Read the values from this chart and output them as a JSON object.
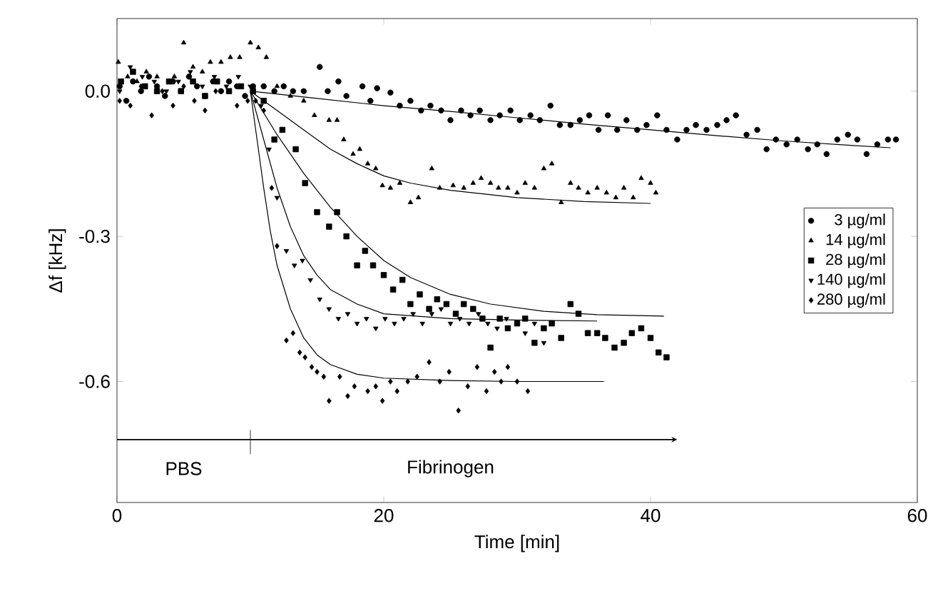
{
  "chart_data": {
    "type": "scatter",
    "xlabel": "Time [min]",
    "ylabel": "Δf [kHz]",
    "xlim": [
      0,
      60
    ],
    "ylim": [
      -0.85,
      0.15
    ],
    "xticks": [
      0,
      20,
      40,
      60
    ],
    "yticks": [
      {
        "value": 0,
        "label": "0.0"
      },
      -0.3,
      -0.6
    ],
    "legend": "right",
    "annotations": [
      "PBS",
      "Fibrinogen"
    ],
    "series": [
      {
        "name": "3 µg/ml",
        "color": "#000000",
        "marker": "circle",
        "x": [
          0.2,
          0.7,
          1.2,
          1.8,
          2.4,
          3,
          3.6,
          4.2,
          4.8,
          5.4,
          6,
          6.6,
          7.2,
          7.8,
          8.4,
          9,
          9.6,
          10.2,
          11,
          11.8,
          12.5,
          13.2,
          14,
          15.2,
          15.8,
          16.6,
          17.2,
          18.4,
          19,
          19.5,
          20.5,
          21.2,
          22,
          22.8,
          23.5,
          24.3,
          25,
          25.8,
          26.5,
          27.2,
          28,
          28.7,
          29.5,
          30.2,
          31,
          31.7,
          32.5,
          33.2,
          34,
          34.7,
          35.4,
          36.1,
          36.8,
          37.5,
          38.2,
          39,
          39.7,
          40.5,
          41.2,
          42,
          42.7,
          43.4,
          44.2,
          45,
          45.7,
          46.4,
          47.2,
          48,
          48.7,
          49.4,
          50.2,
          51,
          51.8,
          52.5,
          53.2,
          54,
          54.8,
          55.5,
          56.2,
          57,
          57.8,
          58.4
        ],
        "values": [
          0.01,
          -0.02,
          0.02,
          0.0,
          0.03,
          0.01,
          -0.01,
          0.02,
          0.0,
          0.03,
          0.01,
          -0.01,
          0.02,
          0.0,
          0.02,
          0.01,
          -0.01,
          0.01,
          0.01,
          0.0,
          0.01,
          0.0,
          0.0,
          0.05,
          0.0,
          0.02,
          -0.01,
          0.01,
          -0.02,
          0.006,
          -0.003,
          -0.03,
          -0.02,
          -0.04,
          -0.03,
          -0.04,
          -0.06,
          -0.04,
          -0.05,
          -0.04,
          -0.06,
          -0.05,
          -0.04,
          -0.06,
          -0.05,
          -0.06,
          -0.03,
          -0.07,
          -0.07,
          -0.06,
          -0.05,
          -0.08,
          -0.05,
          -0.08,
          -0.06,
          -0.08,
          -0.07,
          -0.05,
          -0.08,
          -0.1,
          -0.08,
          -0.07,
          -0.08,
          -0.07,
          -0.06,
          -0.05,
          -0.09,
          -0.08,
          -0.12,
          -0.1,
          -0.11,
          -0.1,
          -0.12,
          -0.11,
          -0.13,
          -0.1,
          -0.09,
          -0.1,
          -0.13,
          -0.11,
          -0.1,
          -0.1
        ]
      },
      {
        "name": "14 µg/ml",
        "color": "#000000",
        "marker": "triangle",
        "x": [
          0.1,
          0.8,
          1.5,
          2.2,
          3,
          3.6,
          4.3,
          5,
          5.7,
          6.4,
          7,
          7.8,
          8.5,
          9.2,
          10,
          10.6,
          11.2,
          12,
          13,
          14,
          14.8,
          15.9,
          16.5,
          17,
          17.7,
          18.2,
          18.8,
          19.4,
          19.9,
          20.5,
          21.2,
          22,
          22.6,
          23.6,
          24.2,
          25.2,
          26,
          26.7,
          27.3,
          28,
          28.6,
          29.3,
          30,
          30.6,
          31.3,
          32,
          32.6,
          33.3,
          34,
          34.6,
          35.3,
          36,
          36.7,
          37.4,
          38,
          38.7,
          39.3,
          40,
          40.4
        ],
        "values": [
          0.06,
          0.03,
          0.02,
          0.04,
          0.03,
          -0.01,
          0.03,
          0.1,
          0.05,
          0.04,
          0.06,
          0.06,
          0.07,
          0.07,
          0.1,
          0.09,
          0.07,
          0.01,
          -0.01,
          -0.02,
          -0.05,
          -0.06,
          -0.06,
          -0.1,
          -0.13,
          -0.12,
          -0.15,
          -0.16,
          -0.195,
          -0.2,
          -0.19,
          -0.23,
          -0.22,
          -0.16,
          -0.2,
          -0.195,
          -0.2,
          -0.19,
          -0.18,
          -0.19,
          -0.2,
          -0.2,
          -0.21,
          -0.19,
          -0.2,
          -0.16,
          -0.15,
          -0.23,
          -0.19,
          -0.2,
          -0.21,
          -0.2,
          -0.21,
          -0.22,
          -0.2,
          -0.22,
          -0.18,
          -0.19,
          -0.21
        ]
      },
      {
        "name": "28 µg/ml",
        "color": "#000000",
        "marker": "square",
        "x": [
          0.3,
          1.2,
          2.1,
          3,
          3.9,
          4.8,
          5.7,
          6.6,
          7.5,
          8.4,
          9.3,
          10.2,
          11,
          11.8,
          12.4,
          13.4,
          14.1,
          15,
          15.9,
          16.5,
          17.2,
          18,
          18.6,
          19.2,
          20,
          20.7,
          21.4,
          22,
          22.7,
          23.4,
          24,
          24.7,
          25.4,
          26,
          26.7,
          27.4,
          28,
          28.7,
          29.3,
          30,
          30.6,
          31.3,
          32,
          32.6,
          33.3,
          34,
          34.6,
          35.3,
          36,
          36.6,
          37.3,
          38,
          38.6,
          39.3,
          40,
          40.6,
          41.2
        ],
        "values": [
          0.02,
          0.04,
          0.01,
          0.0,
          0.02,
          0.0,
          0.02,
          -0.01,
          0.02,
          0.0,
          0.01,
          0.0,
          -0.02,
          -0.1,
          -0.08,
          -0.12,
          -0.19,
          -0.25,
          -0.28,
          -0.25,
          -0.3,
          -0.36,
          -0.33,
          -0.36,
          -0.38,
          -0.41,
          -0.39,
          -0.44,
          -0.42,
          -0.45,
          -0.43,
          -0.44,
          -0.46,
          -0.44,
          -0.45,
          -0.47,
          -0.53,
          -0.47,
          -0.49,
          -0.48,
          -0.47,
          -0.52,
          -0.49,
          -0.48,
          -0.51,
          -0.44,
          -0.46,
          -0.5,
          -0.5,
          -0.51,
          -0.53,
          -0.52,
          -0.5,
          -0.49,
          -0.51,
          -0.54,
          -0.55
        ]
      },
      {
        "name": "140 µg/ml",
        "color": "#000000",
        "marker": "triangle_down",
        "x": [
          0.2,
          1,
          1.9,
          2.8,
          3.7,
          4.6,
          5.5,
          6.4,
          7.3,
          8.2,
          9.1,
          10,
          10.8,
          11.4,
          12,
          12.7,
          13.3,
          13.9,
          14.5,
          15.2,
          15.9,
          16.6,
          17.3,
          18,
          18.7,
          19.4,
          20.1,
          20.8,
          21.5,
          22.2,
          22.9,
          23.6,
          24.3,
          25,
          25.7,
          26.4,
          27.1,
          27.8,
          28.5,
          29.2,
          29.9,
          30.6,
          31.3,
          32
        ],
        "values": [
          0.0,
          0.05,
          0.03,
          0.02,
          0.0,
          0.02,
          0.04,
          0.01,
          0.03,
          0.01,
          0.03,
          0.01,
          -0.03,
          -0.12,
          -0.22,
          -0.33,
          -0.36,
          -0.35,
          -0.39,
          -0.43,
          -0.45,
          -0.47,
          -0.46,
          -0.48,
          -0.47,
          -0.49,
          -0.47,
          -0.48,
          -0.47,
          -0.46,
          -0.48,
          -0.46,
          -0.45,
          -0.48,
          -0.47,
          -0.48,
          -0.46,
          -0.48,
          -0.49,
          -0.47,
          null,
          -0.5,
          -0.48,
          -0.52
        ]
      },
      {
        "name": "280 µg/ml",
        "color": "#000000",
        "marker": "diamond",
        "x": [
          0.2,
          1,
          1.8,
          2.6,
          3.4,
          4.2,
          5,
          5.8,
          6.6,
          7.4,
          8.2,
          9,
          9.8,
          10.4,
          11,
          11.6,
          12,
          12.7,
          13.2,
          13.7,
          14.1,
          14.6,
          15,
          15.5,
          15.9,
          16.7,
          17.3,
          17.8,
          18.8,
          19.4,
          19.9,
          20.5,
          21,
          21.8,
          22.5,
          23.4,
          24.2,
          24.9,
          25.6,
          26.3,
          27,
          27.7,
          28.3,
          28.8,
          29.3,
          30,
          30.8
        ],
        "values": [
          -0.02,
          -0.03,
          0.01,
          -0.05,
          0.0,
          -0.03,
          0.01,
          -0.02,
          -0.04,
          0.0,
          null,
          -0.03,
          -0.02,
          -0.02,
          -0.04,
          -0.2,
          -0.32,
          -0.515,
          -0.5,
          -0.54,
          -0.55,
          -0.57,
          -0.58,
          -0.59,
          -0.64,
          -0.59,
          -0.63,
          -0.61,
          -0.62,
          -0.61,
          -0.64,
          -0.6,
          -0.62,
          -0.6,
          -0.59,
          -0.56,
          -0.6,
          -0.58,
          -0.66,
          -0.61,
          -0.57,
          -0.62,
          -0.58,
          -0.6,
          -0.57,
          -0.6,
          -0.62
        ]
      },
      {
        "type": "line",
        "color": "#000000",
        "x": [
          10,
          15,
          20,
          25,
          30,
          35,
          40,
          45,
          50,
          55,
          58
        ],
        "values": [
          0,
          -0.015,
          -0.03,
          -0.042,
          -0.055,
          -0.068,
          -0.08,
          -0.092,
          -0.103,
          -0.112,
          -0.117
        ]
      },
      {
        "type": "line",
        "color": "#000000",
        "x": [
          10,
          12,
          14,
          16,
          18,
          20,
          22,
          25,
          30,
          35,
          40
        ],
        "values": [
          0,
          -0.04,
          -0.08,
          -0.12,
          -0.15,
          -0.175,
          -0.19,
          -0.205,
          -0.22,
          -0.228,
          -0.232
        ]
      },
      {
        "type": "line",
        "color": "#000000",
        "x": [
          10,
          12,
          14,
          16,
          18,
          20,
          22,
          25,
          28,
          32,
          36,
          41
        ],
        "values": [
          0,
          -0.09,
          -0.17,
          -0.24,
          -0.3,
          -0.35,
          -0.385,
          -0.42,
          -0.44,
          -0.455,
          -0.462,
          -0.465
        ]
      },
      {
        "type": "line",
        "color": "#000000",
        "x": [
          10,
          11,
          12,
          13,
          14,
          15,
          16,
          18,
          20,
          25,
          30,
          36
        ],
        "values": [
          0,
          -0.1,
          -0.2,
          -0.28,
          -0.34,
          -0.38,
          -0.41,
          -0.44,
          -0.46,
          -0.47,
          -0.473,
          -0.475
        ]
      },
      {
        "type": "line",
        "color": "#000000",
        "x": [
          10,
          10.5,
          11,
          11.5,
          12,
          13,
          14,
          15,
          16,
          18,
          20,
          25,
          30,
          36.5
        ],
        "values": [
          0,
          -0.1,
          -0.2,
          -0.29,
          -0.36,
          -0.45,
          -0.51,
          -0.545,
          -0.565,
          -0.585,
          -0.593,
          -0.598,
          -0.6,
          -0.6
        ]
      }
    ]
  }
}
